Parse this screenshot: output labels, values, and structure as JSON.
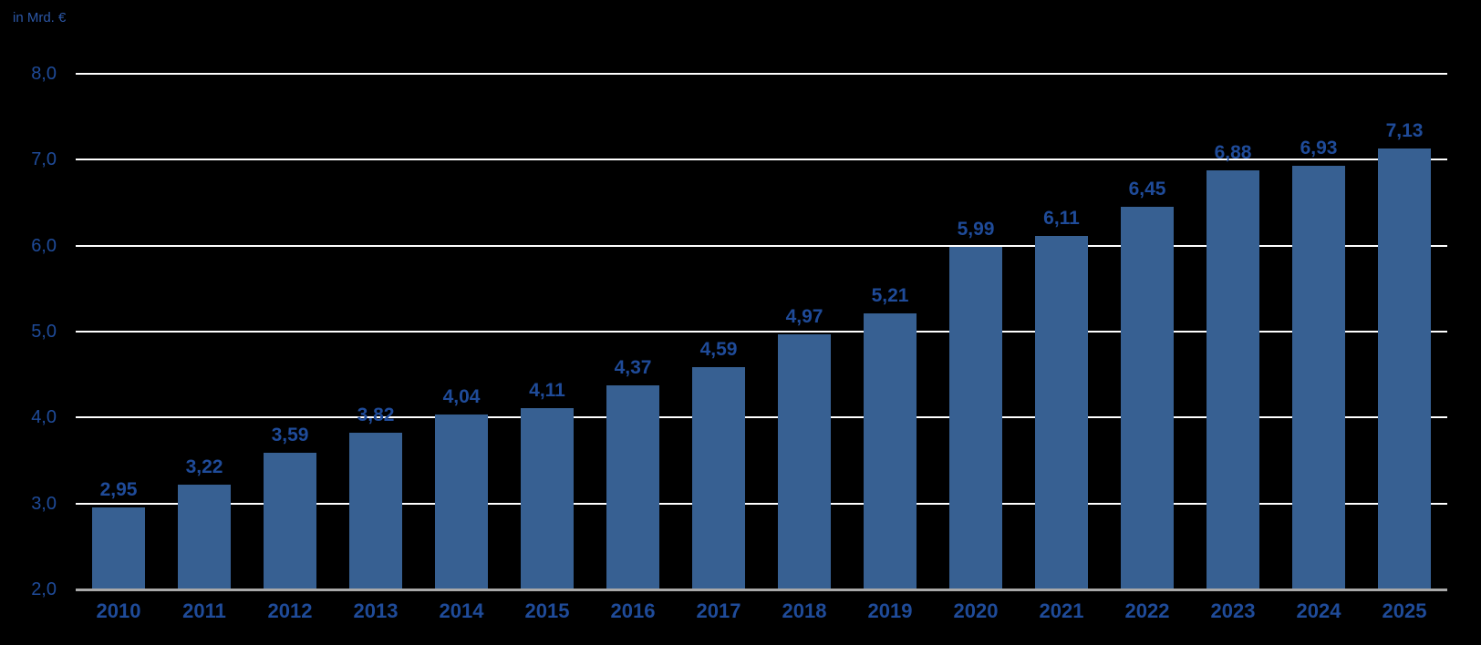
{
  "chart_data": {
    "type": "bar",
    "title": "",
    "xlabel": "",
    "ylabel": "in Mrd. €",
    "categories": [
      "2010",
      "2011",
      "2012",
      "2013",
      "2014",
      "2015",
      "2016",
      "2017",
      "2018",
      "2019",
      "2020",
      "2021",
      "2022",
      "2023",
      "2024",
      "2025"
    ],
    "values": [
      2.95,
      3.22,
      3.59,
      3.82,
      4.04,
      4.11,
      4.37,
      4.59,
      4.97,
      5.21,
      5.99,
      6.11,
      6.45,
      6.88,
      6.93,
      7.13
    ],
    "value_labels": [
      "2,95",
      "3,22",
      "3,59",
      "3,82",
      "4,04",
      "4,11",
      "4,37",
      "4,59",
      "4,97",
      "5,21",
      "5,99",
      "6,11",
      "6,45",
      "6,88",
      "6,93",
      "7,13"
    ],
    "ylim": [
      2.0,
      8.0
    ],
    "yticks": [
      2,
      3,
      4,
      5,
      6,
      7,
      8
    ],
    "ytick_labels": [
      "2,0",
      "3,0",
      "4,0",
      "5,0",
      "6,0",
      "7,0",
      "8,0"
    ],
    "grid": "horizontal",
    "legend": "none",
    "colors": {
      "background": "#000000",
      "bar": "#376092",
      "label_text": "#1F4B99",
      "axis_title_text": "#2C57A6",
      "gridline": "#FFFFFF",
      "baseline": "#A9A9A9"
    }
  }
}
